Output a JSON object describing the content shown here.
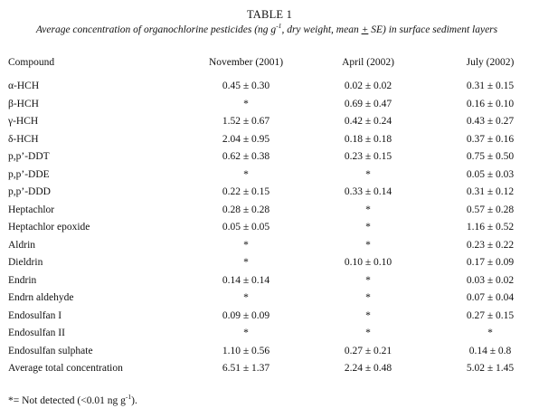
{
  "table": {
    "number": "TABLE 1",
    "caption_before_unit": "Average concentration of organochlorine pesticides (ng g",
    "caption_unit_superscript": "-1",
    "caption_middle": ", dry weight, mean ",
    "caption_pm": "+",
    "caption_after": " SE) in surface sediment layers",
    "headers": {
      "compound": "Compound",
      "nov": "November (2001)",
      "apr": "April (2002)",
      "jul": "July (2002)"
    },
    "rows": [
      {
        "compound": "α-HCH",
        "nov": "0.45 ± 0.30",
        "apr": "0.02 ± 0.02",
        "jul": "0.31 ± 0.15"
      },
      {
        "compound": "β-HCH",
        "nov": "*",
        "apr": "0.69 ± 0.47",
        "jul": "0.16 ± 0.10"
      },
      {
        "compound": "γ-HCH",
        "nov": "1.52 ± 0.67",
        "apr": "0.42 ± 0.24",
        "jul": "0.43 ± 0.27"
      },
      {
        "compound": "δ-HCH",
        "nov": "2.04 ± 0.95",
        "apr": "0.18 ± 0.18",
        "jul": "0.37 ± 0.16"
      },
      {
        "compound": "p,p’-DDT",
        "nov": "0.62 ± 0.38",
        "apr": "0.23 ± 0.15",
        "jul": "0.75 ± 0.50"
      },
      {
        "compound": "p,p’-DDE",
        "nov": "*",
        "apr": "*",
        "jul": "0.05 ± 0.03"
      },
      {
        "compound": "p,p’-DDD",
        "nov": "0.22 ± 0.15",
        "apr": "0.33 ± 0.14",
        "jul": "0.31 ± 0.12"
      },
      {
        "compound": "Heptachlor",
        "nov": "0.28 ± 0.28",
        "apr": "*",
        "jul": "0.57 ± 0.28"
      },
      {
        "compound": "Heptachlor epoxide",
        "nov": "0.05 ± 0.05",
        "apr": "*",
        "jul": "1.16 ± 0.52"
      },
      {
        "compound": "Aldrin",
        "nov": "*",
        "apr": "*",
        "jul": "0.23 ± 0.22"
      },
      {
        "compound": "Dieldrin",
        "nov": "*",
        "apr": "0.10 ± 0.10",
        "jul": "0.17 ± 0.09"
      },
      {
        "compound": "Endrin",
        "nov": "0.14 ± 0.14",
        "apr": "*",
        "jul": "0.03 ± 0.02"
      },
      {
        "compound": "Endrn aldehyde",
        "nov": "*",
        "apr": "*",
        "jul": "0.07 ± 0.04"
      },
      {
        "compound": "Endosulfan I",
        "nov": "0.09 ± 0.09",
        "apr": "*",
        "jul": "0.27 ± 0.15"
      },
      {
        "compound": "Endosulfan II",
        "nov": "*",
        "apr": "*",
        "jul": "*"
      },
      {
        "compound": "Endosulfan sulphate",
        "nov": "1.10 ± 0.56",
        "apr": "0.27 ± 0.21",
        "jul": "0.14 ± 0.8"
      },
      {
        "compound": "Average total concentration",
        "nov": "6.51 ± 1.37",
        "apr": "2.24 ± 0.48",
        "jul": "5.02 ± 1.45"
      }
    ],
    "footnote_before": "*= Not detected (<0.01 ng g",
    "footnote_superscript": "-1",
    "footnote_after": ")."
  }
}
